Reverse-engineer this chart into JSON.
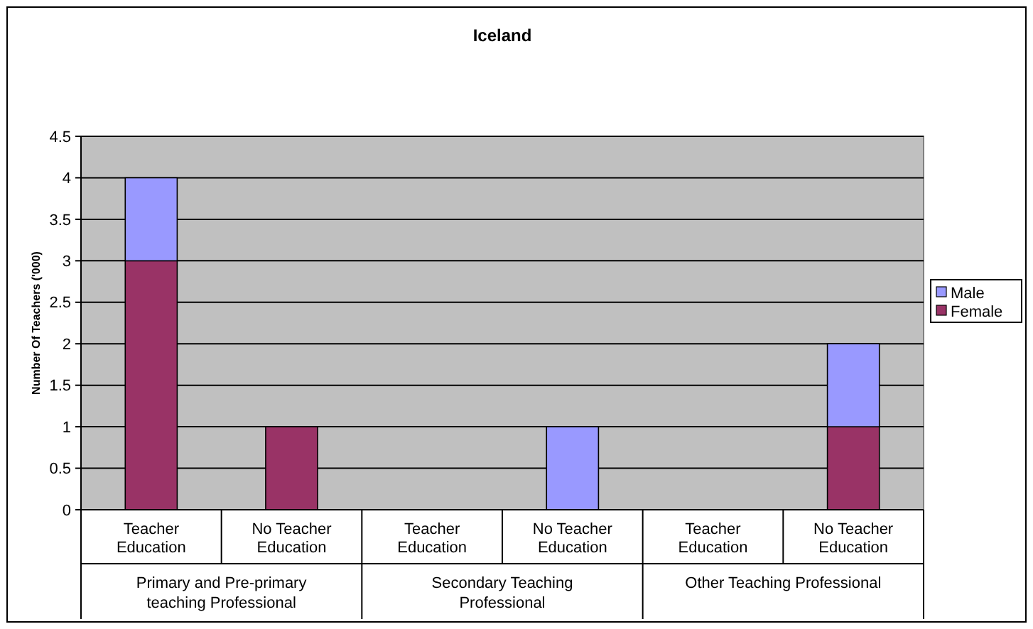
{
  "chart_data": {
    "type": "bar",
    "title": "Iceland",
    "ylabel": "Number Of Teachers ('000)",
    "categories": [
      "Teacher Education",
      "No Teacher Education",
      "Teacher Education",
      "No Teacher Education",
      "Teacher Education",
      "No Teacher Education"
    ],
    "annotations": [
      "Primary and Pre-primary teaching Professional",
      "Secondary Teaching Professional",
      "Other Teaching Professional"
    ],
    "series": [
      {
        "name": "Female",
        "color": "#993366",
        "values": [
          3,
          1,
          null,
          null,
          null,
          1
        ]
      },
      {
        "name": "Male",
        "color": "#9999ff",
        "values": [
          1,
          null,
          null,
          1,
          null,
          1
        ]
      }
    ],
    "stacked": true,
    "ylim": [
      0,
      4.5
    ],
    "yticks": [
      0,
      0.5,
      1,
      1.5,
      2,
      2.5,
      3,
      3.5,
      4,
      4.5
    ],
    "grid": "y",
    "legend": "right"
  }
}
